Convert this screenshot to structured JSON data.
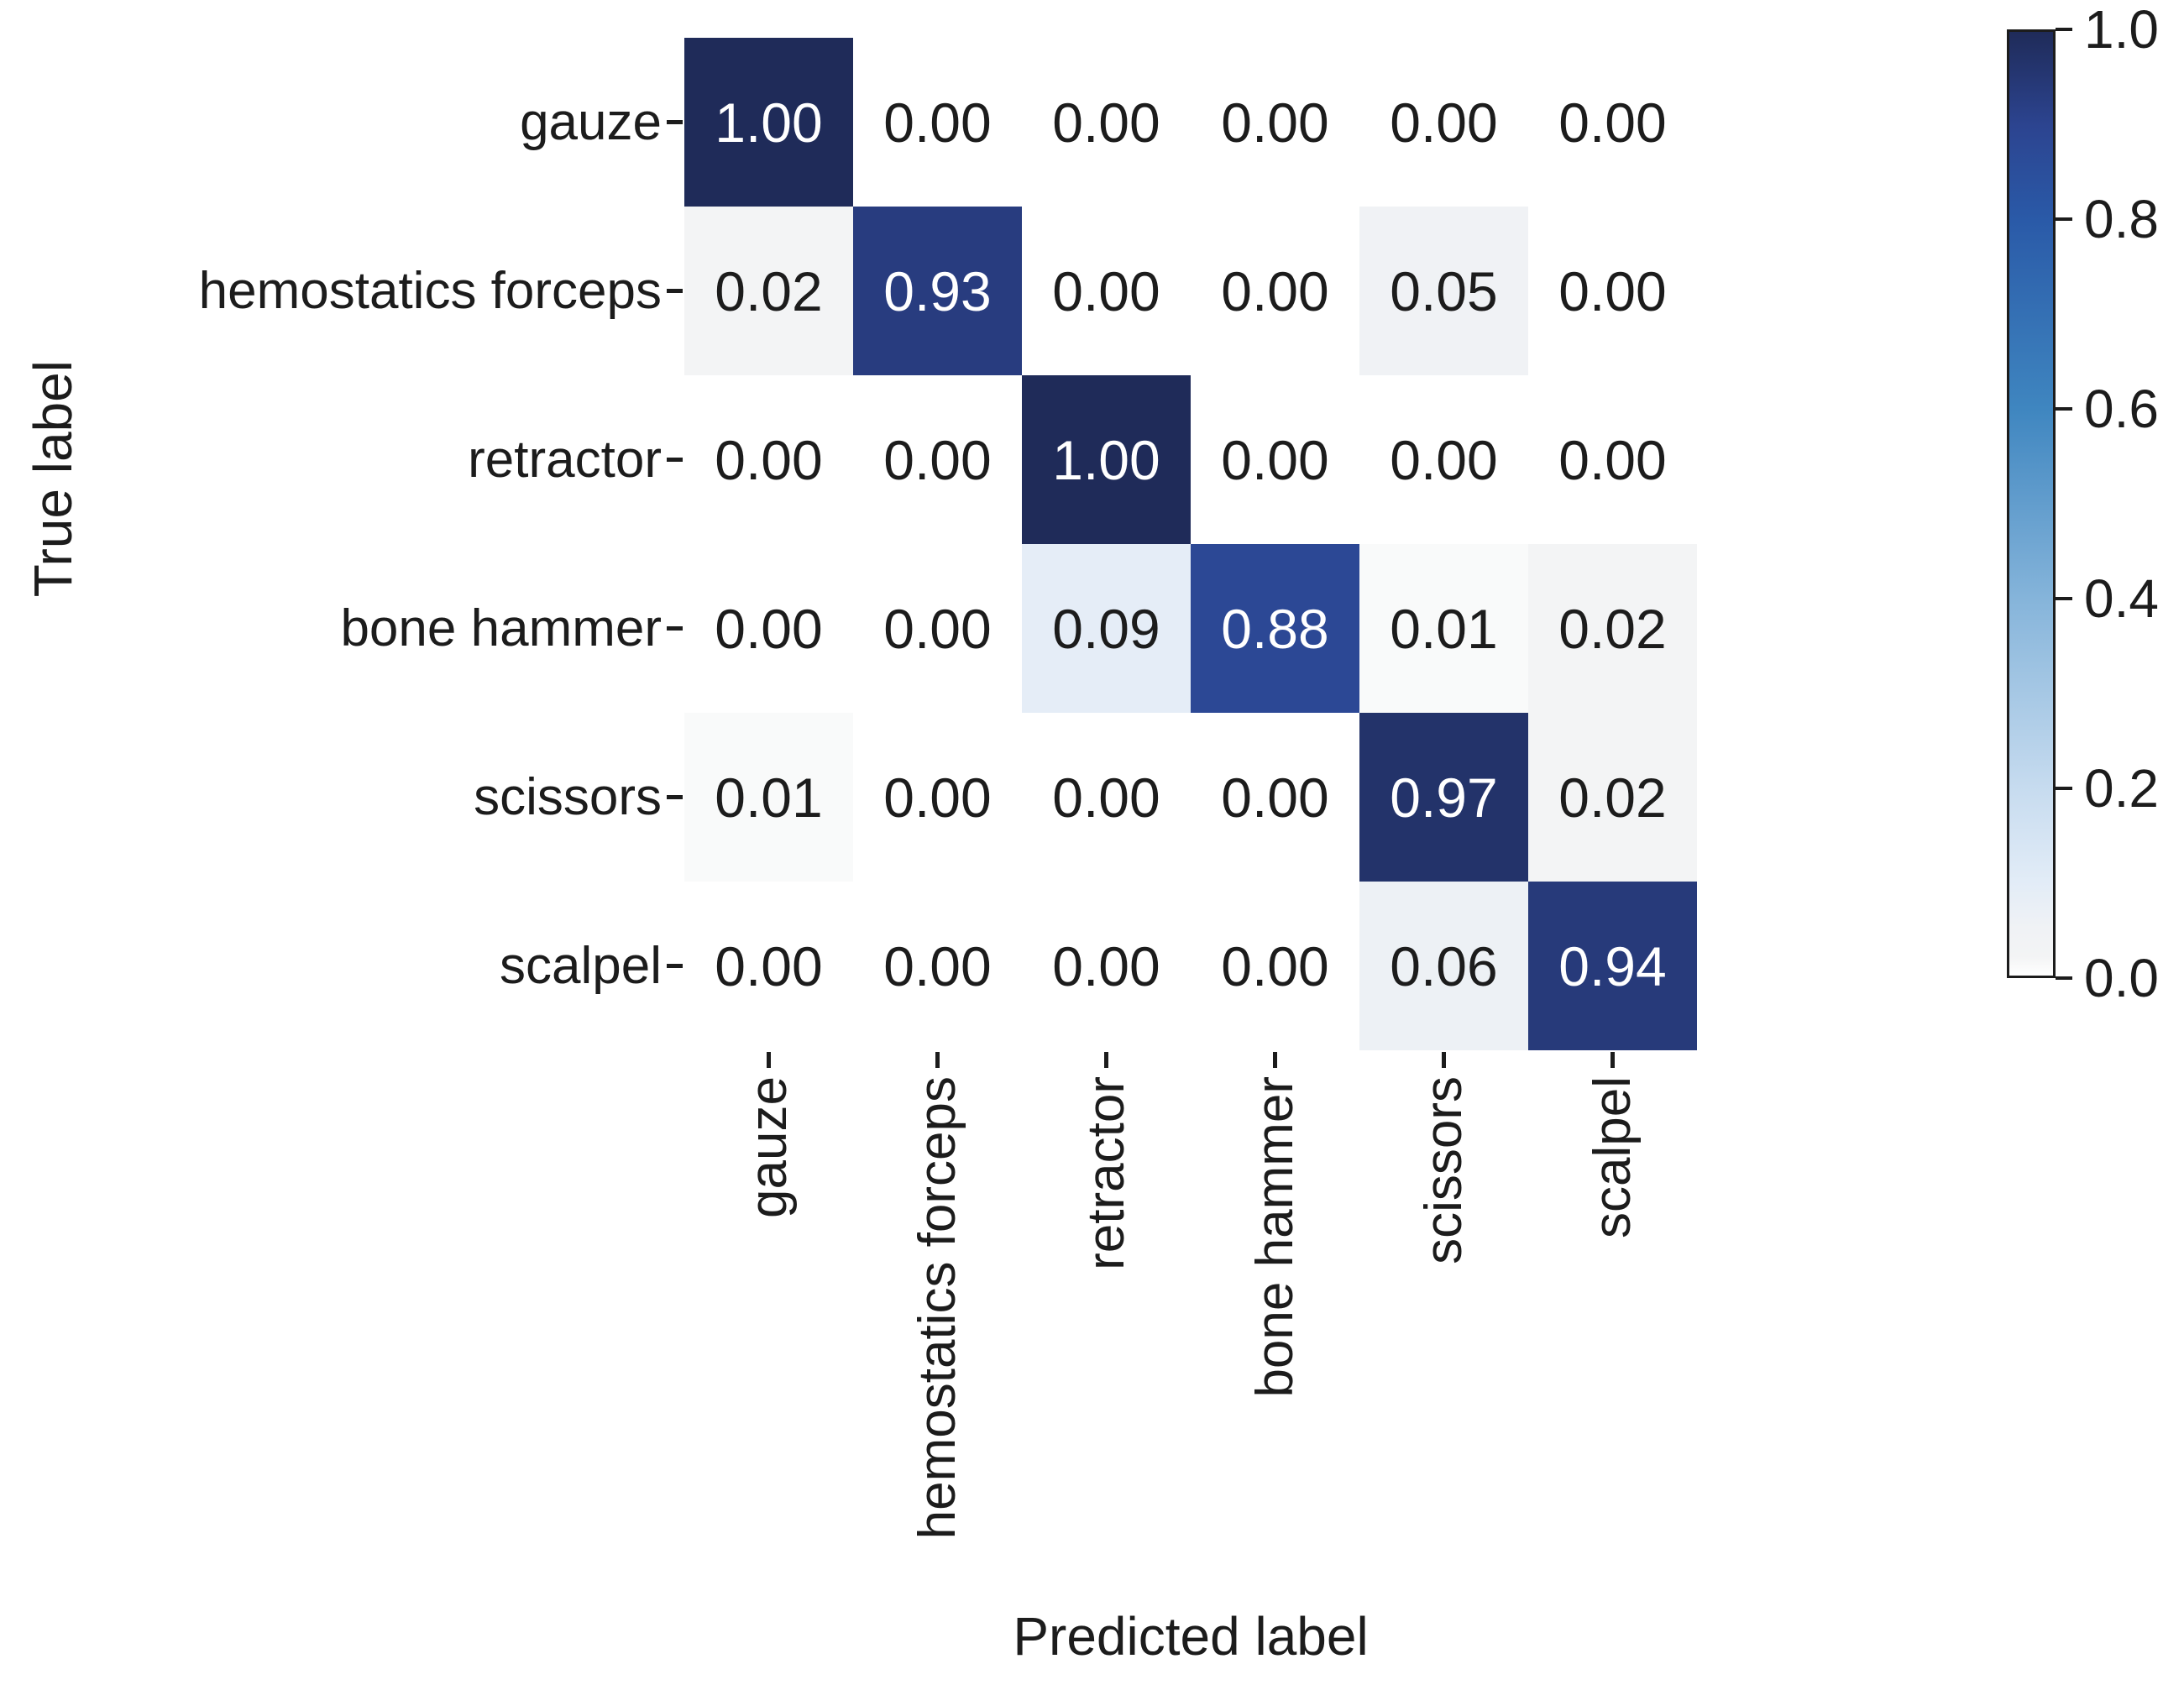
{
  "axes": {
    "xlabel": "Predicted label",
    "ylabel": "True label"
  },
  "chart_data": {
    "type": "heatmap",
    "title": "",
    "xlabel": "Predicted label",
    "ylabel": "True label",
    "x_categories": [
      "gauze",
      "hemostatics forceps",
      "retractor",
      "bone hammer",
      "scissors",
      "scalpel"
    ],
    "y_categories": [
      "gauze",
      "hemostatics forceps",
      "retractor",
      "bone hammer",
      "scissors",
      "scalpel"
    ],
    "values": [
      [
        1.0,
        0.0,
        0.0,
        0.0,
        0.0,
        0.0
      ],
      [
        0.02,
        0.93,
        0.0,
        0.0,
        0.05,
        0.0
      ],
      [
        0.0,
        0.0,
        1.0,
        0.0,
        0.0,
        0.0
      ],
      [
        0.0,
        0.0,
        0.09,
        0.88,
        0.01,
        0.02
      ],
      [
        0.01,
        0.0,
        0.0,
        0.0,
        0.97,
        0.02
      ],
      [
        0.0,
        0.0,
        0.0,
        0.0,
        0.06,
        0.94
      ]
    ],
    "value_decimals": 2,
    "vmin": 0.0,
    "vmax": 1.0,
    "grid": false,
    "annotation_dark_color": "#1c1c1c",
    "annotation_light_color": "#ffffff",
    "annotation_light_threshold": 0.5,
    "colormap_anchors": [
      {
        "t": 0.0,
        "color": "#ffffff"
      },
      {
        "t": 0.02,
        "color": "#f3f4f5"
      },
      {
        "t": 0.05,
        "color": "#f0f2f5"
      },
      {
        "t": 0.1,
        "color": "#e2ecf7"
      },
      {
        "t": 0.2,
        "color": "#c6dbef"
      },
      {
        "t": 0.4,
        "color": "#85b4da"
      },
      {
        "t": 0.6,
        "color": "#3f86c0"
      },
      {
        "t": 0.8,
        "color": "#2a5aa8"
      },
      {
        "t": 0.9,
        "color": "#2c4490"
      },
      {
        "t": 1.0,
        "color": "#1f2b59"
      }
    ],
    "colorbar": {
      "position": "right",
      "border_color": "#1c1c1c",
      "tick_labels": [
        "1.0",
        "0.8",
        "0.6",
        "0.4",
        "0.2",
        "0.0"
      ],
      "tick_values": [
        1.0,
        0.8,
        0.6,
        0.4,
        0.2,
        0.0
      ]
    }
  }
}
